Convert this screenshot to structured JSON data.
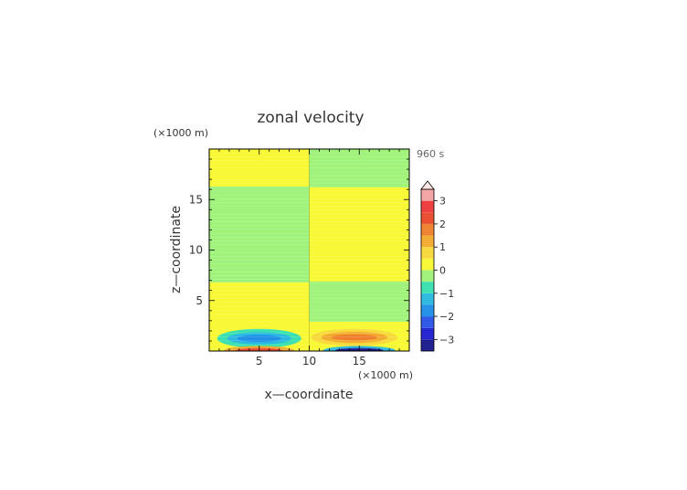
{
  "chart_data": {
    "type": "heatmap",
    "title": "zonal velocity",
    "time_label": "960 s",
    "xlabel": "x—coordinate",
    "ylabel": "z—coordinate",
    "x_unit": "(×1000 m)",
    "y_unit": "(×1000 m)",
    "xlim": [
      0,
      20
    ],
    "ylim": [
      0,
      20
    ],
    "x_ticks": [
      5,
      10,
      15
    ],
    "y_ticks": [
      5,
      10,
      15
    ],
    "colorbar": {
      "levels": [
        -3.5,
        -3,
        -2.5,
        -2,
        -1.5,
        -1,
        -0.5,
        0,
        0.5,
        1,
        1.5,
        2,
        2.5,
        3,
        3.5
      ],
      "tick_values": [
        -3,
        -2,
        -1,
        0,
        1,
        2,
        3
      ],
      "tick_labels": [
        "−3",
        "−2",
        "−1",
        "0",
        "1",
        "2",
        "3"
      ],
      "colors": [
        "#1a1a8c",
        "#2020d0",
        "#2a55e6",
        "#1f8fe8",
        "#2ab9e0",
        "#3be0b0",
        "#9ff27a",
        "#f8f833",
        "#f7d93a",
        "#f2ab2e",
        "#ef7f2c",
        "#ea4a2c",
        "#ee3a3a",
        "#f3a3a3"
      ],
      "extends_max": true
    },
    "regions": [
      {
        "x": [
          0,
          10
        ],
        "y": [
          2.1,
          6.8
        ],
        "value": 0.3
      },
      {
        "x": [
          0,
          10
        ],
        "y": [
          6.8,
          16.3
        ],
        "value": -0.2
      },
      {
        "x": [
          0,
          10
        ],
        "y": [
          16.3,
          20
        ],
        "value": 0.3
      },
      {
        "x": [
          10,
          20
        ],
        "y": [
          2.9,
          6.9
        ],
        "value": -0.2
      },
      {
        "x": [
          10,
          20
        ],
        "y": [
          6.9,
          16.2
        ],
        "value": 0.3
      },
      {
        "x": [
          10,
          20
        ],
        "y": [
          16.2,
          20
        ],
        "value": -0.2
      }
    ],
    "blobs": [
      {
        "cx": 5,
        "cy": 1.25,
        "rx": 4.2,
        "ry": 0.95,
        "value": -0.7
      },
      {
        "cx": 5,
        "cy": 1.25,
        "rx": 3.2,
        "ry": 0.6,
        "value": -1.2
      },
      {
        "cx": 5,
        "cy": 1.25,
        "rx": 2.2,
        "ry": 0.35,
        "value": -1.7
      },
      {
        "cx": 14.5,
        "cy": 1.35,
        "rx": 4.3,
        "ry": 0.85,
        "value": 0.7
      },
      {
        "cx": 14.5,
        "cy": 1.35,
        "rx": 3.3,
        "ry": 0.55,
        "value": 1.2
      },
      {
        "cx": 14.5,
        "cy": 1.35,
        "rx": 2.3,
        "ry": 0.3,
        "value": 1.6
      },
      {
        "cx": 5,
        "cy": 0.05,
        "rx": 3.5,
        "ry": 0.45,
        "value": 1.4
      },
      {
        "cx": 5,
        "cy": 0.05,
        "rx": 2.3,
        "ry": 0.25,
        "value": 2.4
      },
      {
        "cx": 15,
        "cy": 0.05,
        "rx": 3.6,
        "ry": 0.45,
        "value": -1.4
      },
      {
        "cx": 15,
        "cy": 0.05,
        "rx": 2.4,
        "ry": 0.25,
        "value": -3.2
      }
    ]
  }
}
